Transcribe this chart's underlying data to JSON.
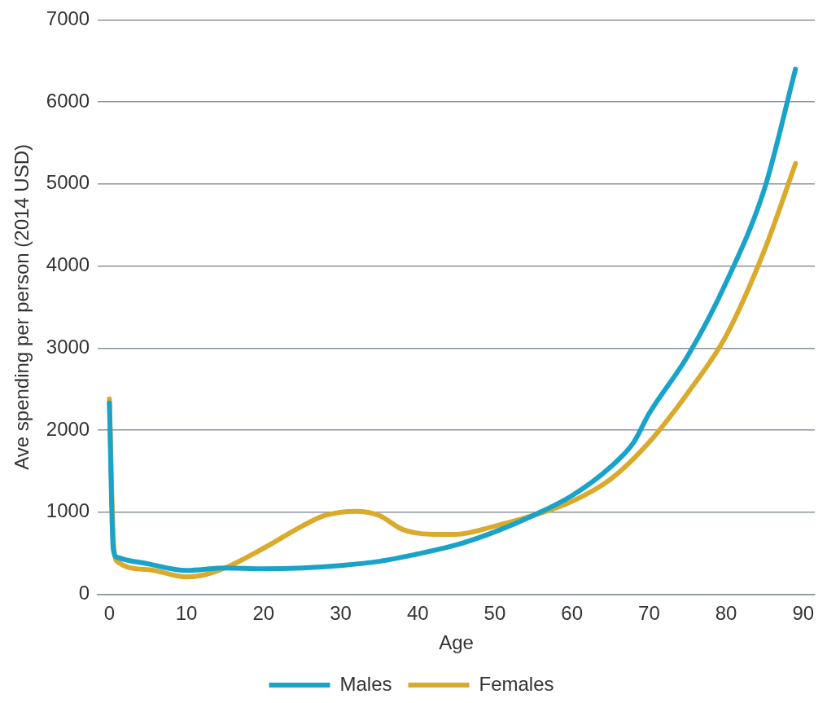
{
  "chart_data": {
    "type": "line",
    "xlabel": "Age",
    "ylabel": "Ave spending per person (2014 USD)",
    "xlim": [
      -1.5,
      91.5
    ],
    "xticks": [
      0,
      10,
      20,
      30,
      40,
      50,
      60,
      70,
      80,
      90
    ],
    "ylim": [
      0,
      7000
    ],
    "yticks": [
      0,
      1000,
      2000,
      3000,
      4000,
      5000,
      6000,
      7000
    ],
    "grid": "y",
    "legend": "bottom",
    "marker": "none",
    "line_style": "solid",
    "series": [
      {
        "name": "Males",
        "color": "#1aa3c8",
        "x": [
          0,
          0.5,
          1,
          5,
          10,
          15,
          20,
          25,
          30,
          35,
          40,
          45,
          50,
          55,
          60,
          65,
          68,
          70,
          75,
          80,
          85,
          89
        ],
        "values": [
          2330,
          550,
          450,
          370,
          290,
          320,
          310,
          320,
          350,
          400,
          490,
          600,
          760,
          960,
          1200,
          1550,
          1850,
          2200,
          2900,
          3800,
          4950,
          6400
        ]
      },
      {
        "name": "Females",
        "color": "#d9aa2b",
        "x": [
          0,
          0.5,
          1,
          5,
          10,
          12,
          15,
          20,
          25,
          28,
          32,
          35,
          38,
          42,
          45,
          50,
          55,
          60,
          65,
          70,
          75,
          80,
          85,
          89
        ],
        "values": [
          2380,
          700,
          400,
          300,
          210,
          230,
          320,
          560,
          830,
          960,
          1010,
          960,
          790,
          730,
          730,
          830,
          960,
          1130,
          1400,
          1850,
          2450,
          3150,
          4200,
          5250
        ]
      }
    ]
  }
}
